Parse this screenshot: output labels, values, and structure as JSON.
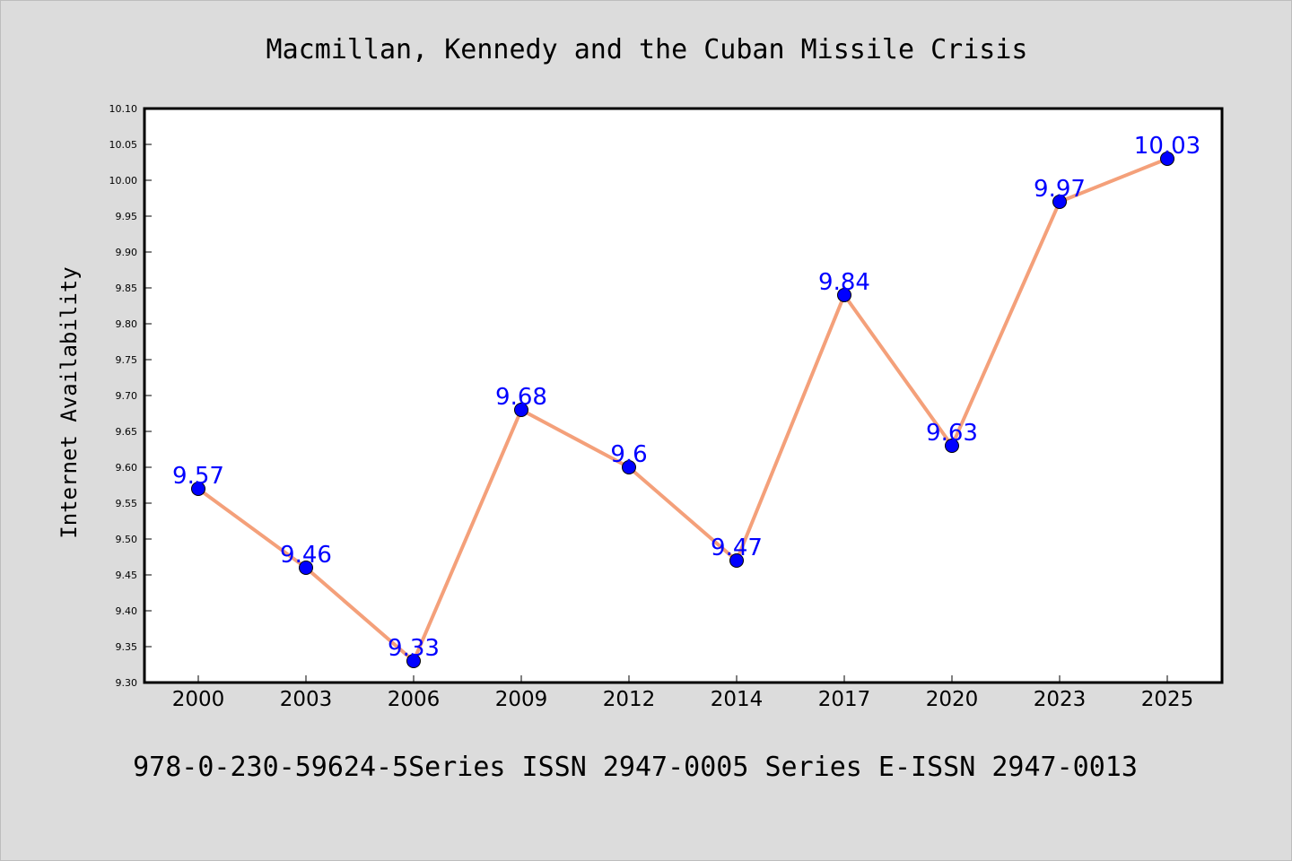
{
  "chart_data": {
    "type": "line",
    "title": "Macmillan, Kennedy and the Cuban Missile Crisis",
    "ylabel": "Internet Availability",
    "xlabel": "",
    "footer": "978-0-230-59624-5Series ISSN 2947-0005 Series E-ISSN 2947-0013",
    "categories": [
      "2000",
      "2003",
      "2006",
      "2009",
      "2012",
      "2014",
      "2017",
      "2020",
      "2023",
      "2025"
    ],
    "series": [
      {
        "values": [
          9.57,
          9.46,
          9.33,
          9.68,
          9.6,
          9.47,
          9.84,
          9.63,
          9.97,
          10.03
        ],
        "labels": [
          "9.57",
          "9.46",
          "9.33",
          "9.68",
          "9.6",
          "9.47",
          "9.84",
          "9.63",
          "9.97",
          "10.03"
        ],
        "line_color": "#f4a07a",
        "marker_color": "#0000ff"
      }
    ],
    "ylim": [
      9.3,
      10.1
    ],
    "yticks": [
      "9.30",
      "9.35",
      "9.40",
      "9.45",
      "9.50",
      "9.55",
      "9.60",
      "9.65",
      "9.70",
      "9.75",
      "9.80",
      "9.85",
      "9.90",
      "9.95",
      "10.00",
      "10.05",
      "10.10"
    ],
    "grid": false,
    "legend": "none"
  }
}
